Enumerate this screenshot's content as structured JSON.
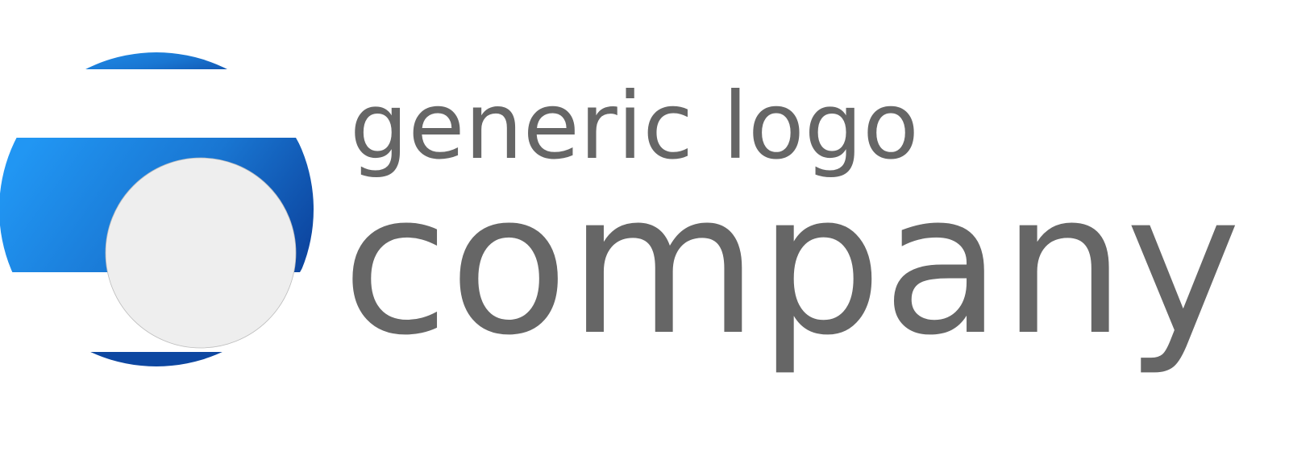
{
  "logo": {
    "tagline": "generic logo",
    "name": "company",
    "text_color": "#666666",
    "gradient_start": "#2196F3",
    "gradient_end": "#0D47A1",
    "disc_color": "#EEEEEE"
  }
}
